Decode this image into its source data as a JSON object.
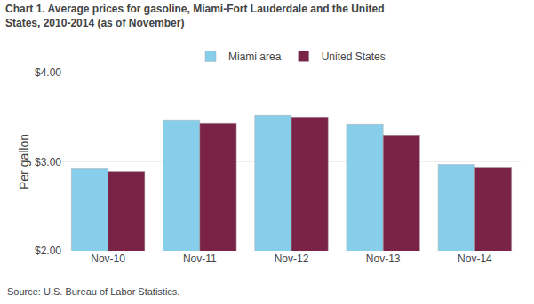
{
  "chart_data": {
    "type": "bar",
    "title": "Chart 1. Average prices for gasoline, Miami-Fort Lauderdale and the United\nStates, 2010-2014 (as of November)",
    "ylabel": "Per gallon",
    "annotations": [
      "Source: U.S. Bureau of Labor Statistics."
    ],
    "categories": [
      "Nov-10",
      "Nov-11",
      "Nov-12",
      "Nov-13",
      "Nov-14"
    ],
    "series": [
      {
        "name": "Miami area",
        "color": "#87CEEB",
        "values": [
          2.92,
          3.47,
          3.52,
          3.42,
          2.97
        ]
      },
      {
        "name": "United States",
        "color": "#7B2346",
        "values": [
          2.89,
          3.43,
          3.5,
          3.3,
          2.94
        ]
      }
    ],
    "ylim": [
      2.0,
      4.0
    ],
    "yticks": [
      {
        "value": 2.0,
        "label": "$2.00"
      },
      {
        "value": 3.0,
        "label": "$3.00"
      },
      {
        "value": 4.0,
        "label": "$4.00"
      }
    ],
    "grid": true,
    "legend": "top"
  }
}
